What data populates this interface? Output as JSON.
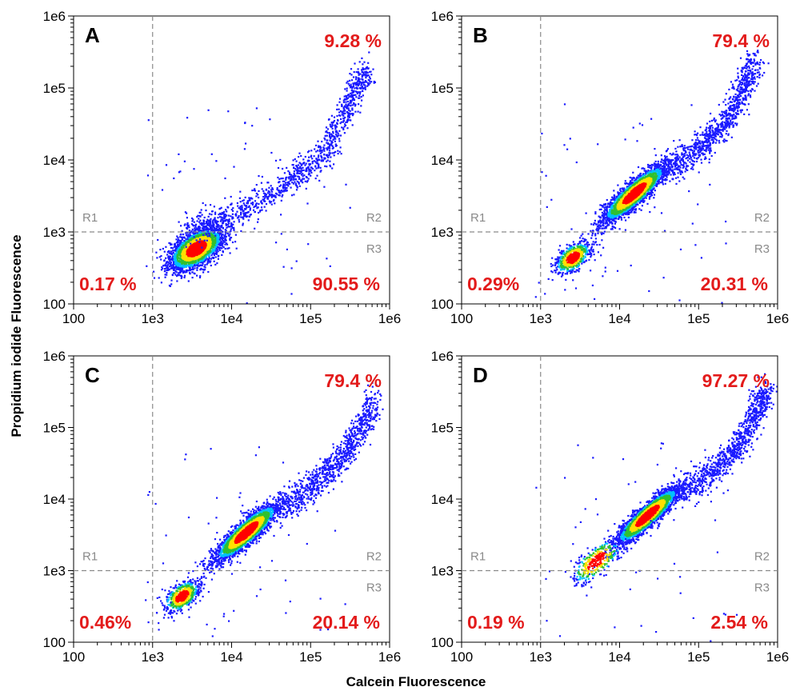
{
  "figure": {
    "xlabel": "Calcein Fluorescence",
    "ylabel": "Propidium iodide Fluorescence"
  },
  "colors": {
    "percent_text": "#e31b1b",
    "region_text": "#8a8a8a",
    "gate_line": "#8a8a8a",
    "density_low": "#1a1aff",
    "density_mid_low": "#00c0ff",
    "density_mid": "#30c030",
    "density_mid_high": "#ffe000",
    "density_high": "#ff0000"
  },
  "chart_data": [
    {
      "type": "scatter",
      "panel": "A",
      "x_scale": "log",
      "y_scale": "log",
      "xlim": [
        100,
        1000000
      ],
      "ylim": [
        100,
        1000000
      ],
      "x_ticks": [
        "100",
        "1e3",
        "1e4",
        "1e5",
        "1e6"
      ],
      "y_ticks": [
        "100",
        "1e3",
        "1e4",
        "1e5",
        "1e6"
      ],
      "gates": {
        "x": 1000,
        "y": 1000
      },
      "regions": [
        "R1",
        "R2",
        "R3"
      ],
      "percentages": {
        "upper_right": "9.28 %",
        "lower_left": "0.17 %",
        "lower_right": "90.55 %"
      },
      "populations": [
        {
          "x": 3500,
          "y": 600,
          "n": 2600,
          "sx": 0.17,
          "sy": 0.15,
          "rho": 0.55
        }
      ],
      "tail": [
        [
          2500,
          1000
        ],
        [
          12000,
          1800
        ],
        [
          50000,
          5000
        ],
        [
          150000,
          12000
        ],
        [
          300000,
          60000
        ],
        [
          500000,
          200000
        ]
      ]
    },
    {
      "type": "scatter",
      "panel": "B",
      "x_scale": "log",
      "y_scale": "log",
      "xlim": [
        100,
        1000000
      ],
      "ylim": [
        100,
        1000000
      ],
      "x_ticks": [
        "100",
        "1e3",
        "1e4",
        "1e5",
        "1e6"
      ],
      "y_ticks": [
        "100",
        "1e3",
        "1e4",
        "1e5",
        "1e6"
      ],
      "gates": {
        "x": 1000,
        "y": 1000
      },
      "regions": [
        "R1",
        "R2",
        "R3"
      ],
      "percentages": {
        "upper_right": "79.4 %",
        "lower_left": "0.29%",
        "lower_right": "20.31 %"
      },
      "populations": [
        {
          "x": 15000,
          "y": 3500,
          "n": 2600,
          "sx": 0.2,
          "sy": 0.2,
          "rho": 0.88
        },
        {
          "x": 2500,
          "y": 450,
          "n": 650,
          "sx": 0.11,
          "sy": 0.11,
          "rho": 0.5
        }
      ],
      "tail": [
        [
          40000,
          7000
        ],
        [
          100000,
          15000
        ],
        [
          200000,
          30000
        ],
        [
          350000,
          90000
        ],
        [
          500000,
          250000
        ]
      ]
    },
    {
      "type": "scatter",
      "panel": "C",
      "x_scale": "log",
      "y_scale": "log",
      "xlim": [
        100,
        1000000
      ],
      "ylim": [
        100,
        1000000
      ],
      "x_ticks": [
        "100",
        "1e3",
        "1e4",
        "1e5",
        "1e6"
      ],
      "y_ticks": [
        "100",
        "1e3",
        "1e4",
        "1e5",
        "1e6"
      ],
      "gates": {
        "x": 1000,
        "y": 1000
      },
      "regions": [
        "R1",
        "R2",
        "R3"
      ],
      "percentages": {
        "upper_right": "79.4 %",
        "lower_left": "0.46%",
        "lower_right": "20.14 %"
      },
      "populations": [
        {
          "x": 15000,
          "y": 3500,
          "n": 2600,
          "sx": 0.2,
          "sy": 0.2,
          "rho": 0.88
        },
        {
          "x": 2300,
          "y": 450,
          "n": 650,
          "sx": 0.11,
          "sy": 0.11,
          "rho": 0.5
        }
      ],
      "tail": [
        [
          40000,
          7000
        ],
        [
          100000,
          15000
        ],
        [
          200000,
          30000
        ],
        [
          400000,
          80000
        ],
        [
          600000,
          250000
        ]
      ]
    },
    {
      "type": "scatter",
      "panel": "D",
      "x_scale": "log",
      "y_scale": "log",
      "xlim": [
        100,
        1000000
      ],
      "ylim": [
        100,
        1000000
      ],
      "x_ticks": [
        "100",
        "1e3",
        "1e4",
        "1e5",
        "1e6"
      ],
      "y_ticks": [
        "100",
        "1e3",
        "1e4",
        "1e5",
        "1e6"
      ],
      "gates": {
        "x": 1000,
        "y": 1000
      },
      "regions": [
        "R1",
        "R2",
        "R3"
      ],
      "percentages": {
        "upper_right": "97.27 %",
        "lower_left": "0.19 %",
        "lower_right": "2.54 %"
      },
      "populations": [
        {
          "x": 22000,
          "y": 6000,
          "n": 2700,
          "sx": 0.2,
          "sy": 0.2,
          "rho": 0.9
        },
        {
          "x": 5000,
          "y": 1400,
          "n": 350,
          "sx": 0.16,
          "sy": 0.16,
          "rho": 0.7
        }
      ],
      "tail": [
        [
          60000,
          12000
        ],
        [
          150000,
          25000
        ],
        [
          300000,
          50000
        ],
        [
          500000,
          150000
        ],
        [
          700000,
          350000
        ]
      ]
    }
  ]
}
